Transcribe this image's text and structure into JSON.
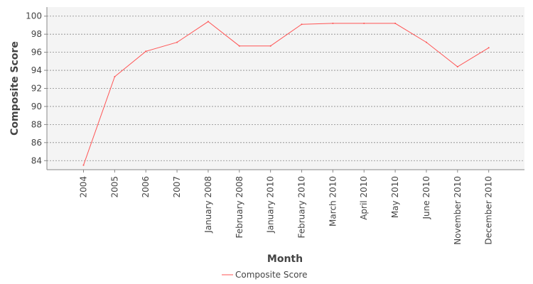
{
  "chart_data": {
    "type": "line",
    "title": "",
    "xlabel": "Month",
    "ylabel": "Composite Score",
    "categories": [
      "2004",
      "2005",
      "2006",
      "2007",
      "January 2008",
      "February 2008",
      "January 2010",
      "February 2010",
      "March 2010",
      "April 2010",
      "May 2010",
      "June 2010",
      "November 2010",
      "December 2010"
    ],
    "series": [
      {
        "name": "Composite Score",
        "color": "#ff5555",
        "values": [
          83.5,
          93.3,
          96.1,
          97.1,
          99.4,
          96.7,
          96.7,
          99.1,
          99.2,
          99.2,
          99.2,
          97.1,
          94.4,
          96.5
        ]
      }
    ],
    "ylim": [
      83,
      101
    ],
    "yticks": [
      84,
      86,
      88,
      90,
      92,
      94,
      96,
      98,
      100
    ],
    "grid": true,
    "legend": "bottom-center",
    "colors": {
      "plot_background": "#f4f4f4",
      "grid": "#888888",
      "axis": "#888888"
    }
  }
}
